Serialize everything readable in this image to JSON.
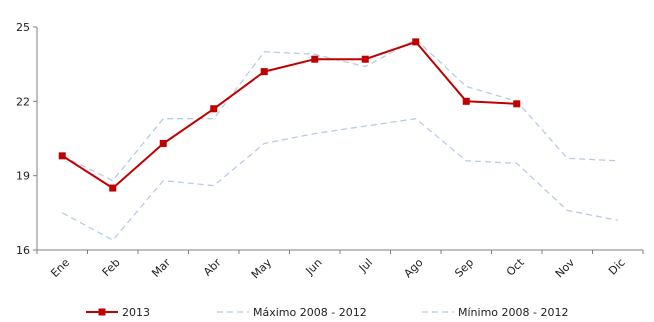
{
  "chart_data": {
    "type": "line",
    "categories": [
      "Ene",
      "Feb",
      "Mar",
      "Abr",
      "May",
      "Jun",
      "Jul",
      "Ago",
      "Sep",
      "Oct",
      "Nov",
      "Dic"
    ],
    "ylim": [
      16,
      25
    ],
    "yticks": [
      16,
      19,
      22,
      25
    ],
    "grid": false,
    "legend_position": "bottom",
    "series": [
      {
        "name": "2013",
        "color": "#c00000",
        "style": "solid",
        "marker": "square",
        "values": [
          19.8,
          18.5,
          20.3,
          21.7,
          23.2,
          23.7,
          23.7,
          24.4,
          22.0,
          21.9,
          null,
          null
        ]
      },
      {
        "name": "Máximo 2008 - 2012",
        "color": "#b8cce4",
        "style": "dashed",
        "marker": "none",
        "values": [
          19.8,
          18.8,
          21.3,
          21.3,
          24.0,
          23.9,
          23.4,
          24.5,
          22.6,
          22.0,
          19.7,
          19.6
        ]
      },
      {
        "name": "Mínimo 2008 - 2012",
        "color": "#b8cce4",
        "style": "dashed",
        "marker": "none",
        "values": [
          17.5,
          16.4,
          18.8,
          18.6,
          20.3,
          20.7,
          21.0,
          21.3,
          19.6,
          19.5,
          17.6,
          17.2
        ]
      }
    ]
  }
}
